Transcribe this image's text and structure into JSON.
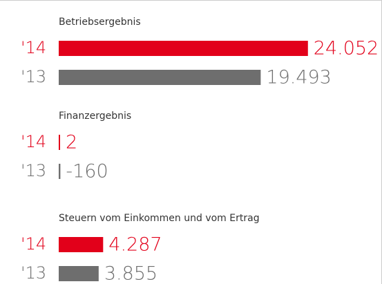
{
  "chart_data": [
    {
      "type": "bar",
      "title": "Betriebsergebnis",
      "categories": [
        "'14",
        "'13"
      ],
      "values": [
        24052,
        19493
      ],
      "value_labels": [
        "24.052",
        "19.493"
      ],
      "colors": [
        "#e2001a",
        "#6e6e6e"
      ]
    },
    {
      "type": "bar",
      "title": "Finanzergebnis",
      "categories": [
        "'14",
        "'13"
      ],
      "values": [
        2,
        -160
      ],
      "value_labels": [
        "2",
        "-160"
      ],
      "colors": [
        "#e2001a",
        "#6e6e6e"
      ]
    },
    {
      "type": "bar",
      "title": "Steuern vom Einkommen und vom Ertrag",
      "categories": [
        "'14",
        "'13"
      ],
      "values": [
        4287,
        3855
      ],
      "value_labels": [
        "4.287",
        "3.855"
      ],
      "colors": [
        "#e2001a",
        "#6e6e6e"
      ]
    }
  ]
}
